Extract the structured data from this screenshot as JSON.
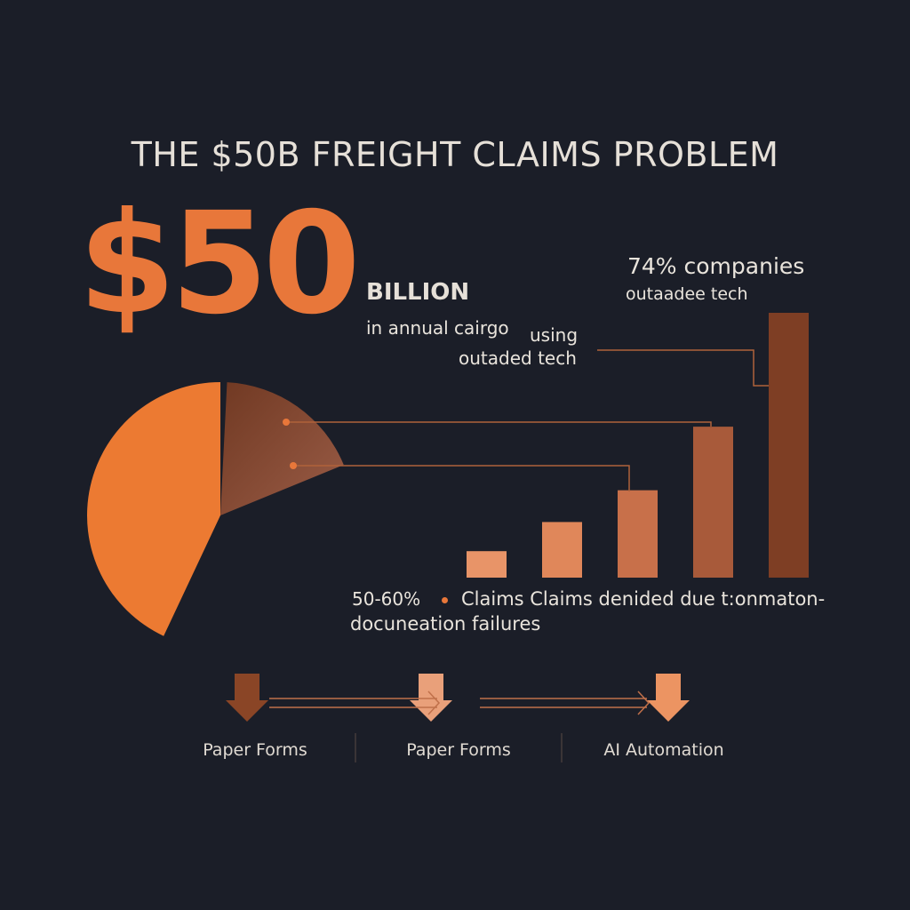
{
  "title": "THE $50B FREIGHT CLAIMS PROBLEM",
  "headline": {
    "amount": "$50",
    "unit": "BILLION",
    "line1": "in annual cairgo",
    "line2": "using",
    "line3": "outaded tech"
  },
  "stat_companies": {
    "value": "74% companies",
    "caption": "outaadee tech"
  },
  "stat_claims": {
    "range": "50-60%",
    "text": "Claims Claims denided due t:onmaton-",
    "text2": "docuneation failures"
  },
  "flow": {
    "steps": [
      {
        "label": "Paper Forms",
        "arrow_color": "#8a4526"
      },
      {
        "label": "Paper Forms",
        "arrow_color": "#e9a07a"
      },
      {
        "label": "AI Automation",
        "arrow_color": "#ec9462"
      }
    ]
  },
  "colors": {
    "background": "#1b1e28",
    "accent": "#e8773a",
    "bar_dark": "#7a3c22",
    "bar_light": "#e8906a"
  },
  "chart_data": [
    {
      "type": "pie",
      "slices": [
        {
          "value": 0.43,
          "color": "#ec7a32"
        },
        {
          "value": 0.3,
          "color": "#8a4a30"
        }
      ]
    },
    {
      "type": "bar",
      "values": [
        10,
        21,
        33,
        57,
        100
      ],
      "colors": [
        "#e89468",
        "#e0875a",
        "#c8704a",
        "#a85a3a",
        "#7e3e24"
      ]
    }
  ]
}
